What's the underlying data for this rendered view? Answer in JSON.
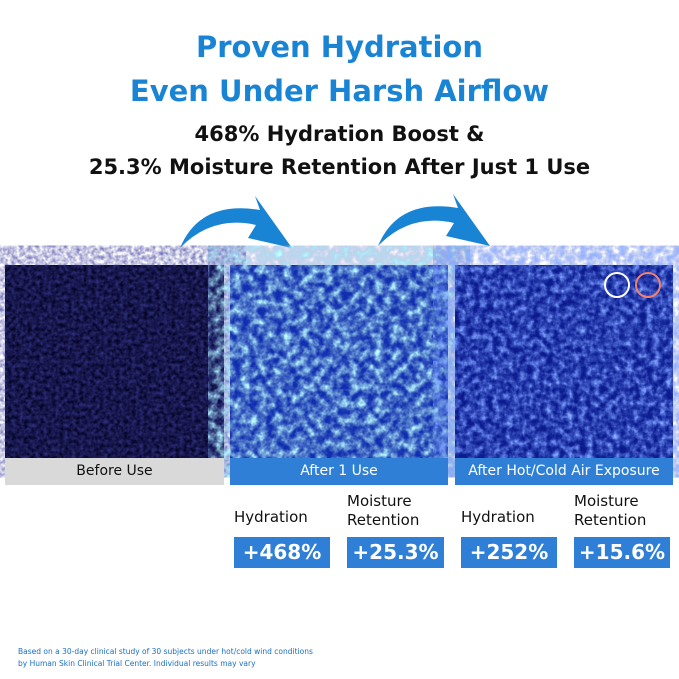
{
  "header": {
    "title_lines": [
      "Proven Hydration",
      "Even Under Harsh Airflow"
    ],
    "subtitle_lines": [
      "468% Hydration Boost &",
      "25.3% Moisture Retention After Just 1 Use"
    ]
  },
  "panels": [
    {
      "label": "Before Use"
    },
    {
      "label": "After 1 Use"
    },
    {
      "label": "After Hot/Cold Air Exposure"
    }
  ],
  "stats": [
    {
      "label_lines": [
        "Hydration"
      ],
      "value": "+468%"
    },
    {
      "label_lines": [
        "Moisture",
        "Retention"
      ],
      "value": "+25.3%"
    },
    {
      "label_lines": [
        "Hydration"
      ],
      "value": "+252%"
    },
    {
      "label_lines": [
        "Moisture",
        "Retention"
      ],
      "value": "+15.6%"
    }
  ],
  "footnote_lines": [
    "Based on a 30-day clinical study of 30 subjects under hot/cold wind conditions",
    "by Human Skin Clinical Trial Center. Individual results may vary"
  ]
}
